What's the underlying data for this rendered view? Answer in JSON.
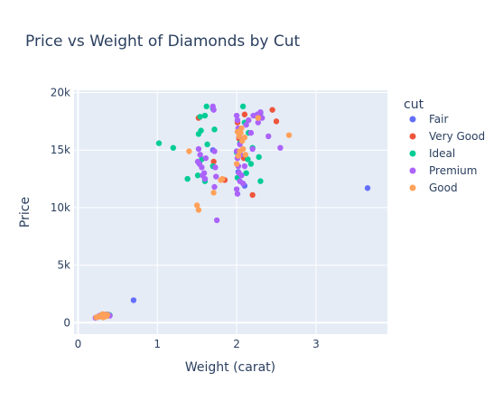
{
  "chart_data": {
    "type": "scatter",
    "title": "Price vs Weight of Diamonds by Cut",
    "xlabel": "Weight (carat)",
    "ylabel": "Price",
    "xlim": [
      -0.05,
      3.9
    ],
    "ylim": [
      -1000,
      20200
    ],
    "xticks": [
      {
        "value": 0,
        "label": "0"
      },
      {
        "value": 1,
        "label": "1"
      },
      {
        "value": 2,
        "label": "2"
      },
      {
        "value": 3,
        "label": "3"
      }
    ],
    "yticks": [
      {
        "value": 0,
        "label": "0"
      },
      {
        "value": 5000,
        "label": "5k"
      },
      {
        "value": 10000,
        "label": "10k"
      },
      {
        "value": 15000,
        "label": "15k"
      },
      {
        "value": 20000,
        "label": "20k"
      }
    ],
    "grid": true,
    "legend_title": "cut",
    "legend_position": "top-right",
    "series": [
      {
        "name": "Fair",
        "color": "#636efa",
        "points": [
          [
            3.65,
            11700
          ],
          [
            0.7,
            1950
          ],
          [
            2.1,
            11900
          ],
          [
            1.7,
            15000
          ],
          [
            2.02,
            13100
          ],
          [
            2.3,
            18200
          ],
          [
            0.3,
            600
          ],
          [
            0.34,
            680
          ],
          [
            0.27,
            560
          ],
          [
            0.36,
            640
          ],
          [
            0.32,
            550
          ],
          [
            0.28,
            620
          ],
          [
            0.38,
            700
          ]
        ]
      },
      {
        "name": "Very Good",
        "color": "#ef553b",
        "points": [
          [
            2.45,
            18500
          ],
          [
            2.5,
            17500
          ],
          [
            1.52,
            17800
          ],
          [
            2.2,
            11100
          ],
          [
            2.03,
            16000
          ],
          [
            2.1,
            18100
          ],
          [
            1.85,
            12400
          ],
          [
            2.01,
            17400
          ],
          [
            2.05,
            15800
          ],
          [
            1.71,
            14000
          ],
          [
            2.27,
            18000
          ],
          [
            2.09,
            14300
          ],
          [
            0.31,
            600
          ],
          [
            0.36,
            650
          ],
          [
            0.29,
            580
          ],
          [
            0.33,
            700
          ],
          [
            0.26,
            540
          ]
        ]
      },
      {
        "name": "Ideal",
        "color": "#00cc96",
        "points": [
          [
            1.02,
            15600
          ],
          [
            1.2,
            15200
          ],
          [
            1.38,
            12500
          ],
          [
            1.52,
            16400
          ],
          [
            1.54,
            17900
          ],
          [
            1.55,
            16700
          ],
          [
            1.6,
            18000
          ],
          [
            1.62,
            18800
          ],
          [
            1.7,
            18600
          ],
          [
            1.72,
            16800
          ],
          [
            1.56,
            14200
          ],
          [
            1.63,
            15500
          ],
          [
            1.51,
            12800
          ],
          [
            1.6,
            12300
          ],
          [
            1.7,
            13600
          ],
          [
            2.0,
            14800
          ],
          [
            2.04,
            15600
          ],
          [
            2.08,
            18800
          ],
          [
            2.1,
            17400
          ],
          [
            2.15,
            16500
          ],
          [
            2.2,
            15200
          ],
          [
            2.28,
            14400
          ],
          [
            2.3,
            12300
          ],
          [
            2.12,
            13000
          ],
          [
            2.01,
            12600
          ],
          [
            2.24,
            18000
          ],
          [
            2.14,
            14200
          ],
          [
            2.18,
            13800
          ],
          [
            1.53,
            13900
          ],
          [
            0.25,
            500
          ],
          [
            0.3,
            620
          ],
          [
            0.33,
            680
          ],
          [
            0.28,
            560
          ],
          [
            0.36,
            700
          ],
          [
            0.4,
            650
          ],
          [
            0.31,
            590
          ],
          [
            0.35,
            630
          ]
        ]
      },
      {
        "name": "Premium",
        "color": "#ab63fa",
        "points": [
          [
            1.75,
            8900
          ],
          [
            1.7,
            18800
          ],
          [
            1.71,
            18500
          ],
          [
            1.51,
            14000
          ],
          [
            1.53,
            13800
          ],
          [
            1.56,
            13500
          ],
          [
            1.57,
            12800
          ],
          [
            1.6,
            12500
          ],
          [
            1.61,
            14300
          ],
          [
            1.52,
            15100
          ],
          [
            1.54,
            14600
          ],
          [
            1.59,
            13000
          ],
          [
            1.72,
            14900
          ],
          [
            1.73,
            13500
          ],
          [
            1.74,
            12700
          ],
          [
            1.72,
            11800
          ],
          [
            2.0,
            18000
          ],
          [
            2.01,
            17600
          ],
          [
            2.02,
            16900
          ],
          [
            2.03,
            16200
          ],
          [
            2.04,
            15500
          ],
          [
            2.0,
            14900
          ],
          [
            2.01,
            14300
          ],
          [
            2.02,
            13600
          ],
          [
            2.03,
            13000
          ],
          [
            2.04,
            12300
          ],
          [
            2.0,
            11600
          ],
          [
            2.01,
            11200
          ],
          [
            2.06,
            12800
          ],
          [
            2.1,
            13600
          ],
          [
            2.12,
            17200
          ],
          [
            2.15,
            17600
          ],
          [
            2.18,
            16500
          ],
          [
            2.21,
            18000
          ],
          [
            2.26,
            18100
          ],
          [
            2.3,
            18300
          ],
          [
            2.32,
            17800
          ],
          [
            2.4,
            16200
          ],
          [
            2.55,
            15200
          ],
          [
            2.2,
            15100
          ],
          [
            2.27,
            17400
          ],
          [
            2.08,
            12100
          ],
          [
            2.05,
            14600
          ],
          [
            0.22,
            420
          ],
          [
            0.25,
            500
          ],
          [
            0.27,
            580
          ],
          [
            0.3,
            640
          ],
          [
            0.32,
            600
          ],
          [
            0.35,
            700
          ],
          [
            0.38,
            660
          ],
          [
            0.4,
            600
          ]
        ]
      },
      {
        "name": "Good",
        "color": "#ffa15a",
        "points": [
          [
            1.4,
            14900
          ],
          [
            1.5,
            10200
          ],
          [
            1.52,
            9800
          ],
          [
            1.71,
            11300
          ],
          [
            1.8,
            12400
          ],
          [
            1.82,
            12500
          ],
          [
            2.01,
            16600
          ],
          [
            2.03,
            16200
          ],
          [
            2.05,
            16500
          ],
          [
            2.07,
            15800
          ],
          [
            2.1,
            16100
          ],
          [
            2.0,
            13800
          ],
          [
            2.02,
            14500
          ],
          [
            2.04,
            14900
          ],
          [
            2.08,
            15100
          ],
          [
            2.11,
            14600
          ],
          [
            2.66,
            16300
          ],
          [
            2.27,
            17800
          ],
          [
            2.06,
            16900
          ],
          [
            0.23,
            460
          ],
          [
            0.26,
            520
          ],
          [
            0.28,
            580
          ],
          [
            0.3,
            660
          ],
          [
            0.31,
            740
          ],
          [
            0.33,
            600
          ],
          [
            0.34,
            700
          ],
          [
            0.36,
            560
          ],
          [
            0.37,
            680
          ],
          [
            0.29,
            520
          ],
          [
            0.32,
            450
          ]
        ]
      }
    ]
  }
}
